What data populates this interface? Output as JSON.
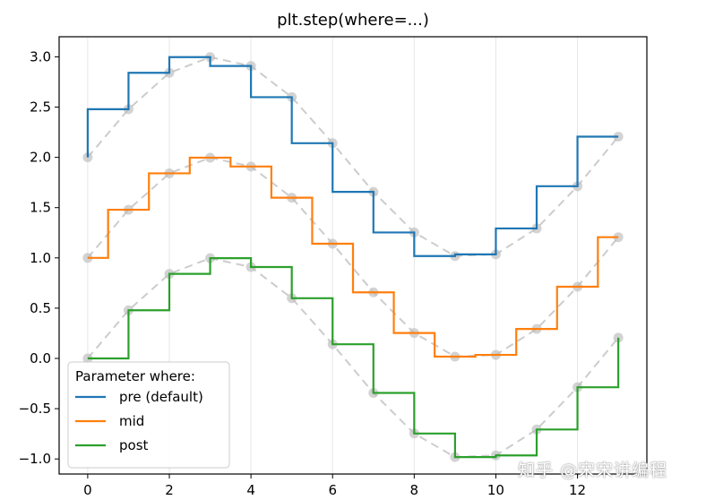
{
  "chart_data": {
    "type": "line",
    "title": "plt.step(where=...)",
    "xlabel": "",
    "ylabel": "",
    "xlim": [
      -0.7,
      13.7
    ],
    "ylim": [
      -1.15,
      3.2
    ],
    "x_ticks": [
      0,
      2,
      4,
      6,
      8,
      10,
      12
    ],
    "y_ticks": [
      -1.0,
      -0.5,
      0.0,
      0.5,
      1.0,
      1.5,
      2.0,
      2.5,
      3.0
    ],
    "x_tick_labels": [
      "0",
      "2",
      "4",
      "6",
      "8",
      "10",
      "12"
    ],
    "y_tick_labels": [
      "−1.0",
      "−0.5",
      "0.0",
      "0.5",
      "1.0",
      "1.5",
      "2.0",
      "2.5",
      "3.0"
    ],
    "grid": "vertical",
    "x": [
      0,
      1,
      2,
      3,
      4,
      5,
      6,
      7,
      8,
      9,
      10,
      11,
      12,
      13
    ],
    "series": [
      {
        "name": "pre (default)",
        "where": "pre",
        "offset": 2,
        "color": "#1f77b4",
        "values": [
          2.0,
          2.479,
          2.841,
          2.997,
          2.909,
          2.599,
          2.141,
          1.657,
          1.253,
          1.018,
          1.035,
          1.293,
          1.713,
          2.206
        ]
      },
      {
        "name": "mid",
        "where": "mid",
        "offset": 1,
        "color": "#ff7f0e",
        "values": [
          1.0,
          1.479,
          1.841,
          1.997,
          1.909,
          1.599,
          1.141,
          0.657,
          0.253,
          0.018,
          0.035,
          0.293,
          0.713,
          1.206
        ]
      },
      {
        "name": "post",
        "where": "post",
        "offset": 0,
        "color": "#2ca02c",
        "values": [
          0.0,
          0.479,
          0.841,
          0.997,
          0.909,
          0.599,
          0.141,
          -0.343,
          -0.747,
          -0.982,
          -0.965,
          -0.707,
          -0.287,
          0.206
        ]
      }
    ],
    "reference_style": {
      "color": "#cccccc",
      "dash": "dashed",
      "markers": "o",
      "alpha": 0.6
    },
    "legend": {
      "title": "Parameter where:",
      "placement": "lower-left",
      "entries": [
        "pre (default)",
        "mid",
        "post"
      ]
    }
  },
  "watermark": {
    "text": "知乎 @宋宋讲编程"
  }
}
